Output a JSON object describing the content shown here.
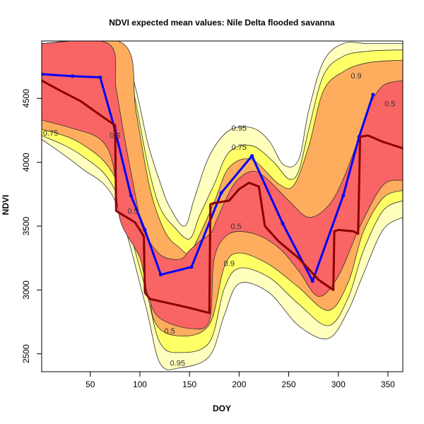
{
  "colors": {
    "band_outer": "#ffffbe",
    "band_mid": "#ffff66",
    "band_inner": "#fdad5d",
    "band_core": "#f96464",
    "median_line": "#8b0000",
    "mean_line": "#0000ff",
    "contour_stroke": "#333333"
  },
  "chart_data": {
    "type": "line",
    "title": "NDVI expected mean values: Nile Delta flooded savanna",
    "xlabel": "DOY",
    "ylabel": "NDVI",
    "xlim": [
      1,
      365
    ],
    "ylim": [
      2360,
      4950
    ],
    "xticks": [
      50,
      100,
      150,
      200,
      250,
      300,
      350
    ],
    "yticks": [
      2500,
      3000,
      3500,
      4000,
      4500
    ],
    "legend": "none",
    "grid": false,
    "series": [
      {
        "role": "mean",
        "color": "#0000ff",
        "x": [
          1,
          32,
          60,
          75,
          91,
          105,
          121,
          152,
          182,
          213,
          244,
          274,
          305,
          321,
          335
        ],
        "y": [
          4690,
          4675,
          4665,
          4250,
          3740,
          3470,
          3120,
          3180,
          3760,
          4050,
          3520,
          3070,
          3740,
          4200,
          4530
        ]
      },
      {
        "role": "median",
        "color": "#8b0000",
        "x": [
          1,
          20,
          40,
          60,
          75,
          76,
          78,
          95,
          104,
          105,
          110,
          130,
          150,
          170,
          171,
          174,
          190,
          200,
          210,
          220,
          223,
          226,
          240,
          260,
          280,
          295,
          296,
          300,
          315,
          320,
          322,
          330,
          345,
          365
        ],
        "y": [
          4640,
          4560,
          4480,
          4370,
          4290,
          3620,
          3610,
          3530,
          3420,
          2980,
          2930,
          2895,
          2860,
          2820,
          3670,
          3680,
          3700,
          3790,
          3840,
          3810,
          3650,
          3500,
          3380,
          3250,
          3080,
          3000,
          3460,
          3470,
          3460,
          3440,
          4200,
          4210,
          4160,
          4110
        ]
      }
    ],
    "contour_bands": [
      {
        "level": 0.95,
        "fill": "#ffffbe",
        "lower": [
          [
            1,
            4180
          ],
          [
            40,
            3960
          ],
          [
            75,
            3700
          ],
          [
            105,
            2900
          ],
          [
            120,
            2430
          ],
          [
            140,
            2390
          ],
          [
            170,
            2480
          ],
          [
            185,
            2800
          ],
          [
            200,
            3050
          ],
          [
            230,
            2980
          ],
          [
            260,
            2720
          ],
          [
            290,
            2620
          ],
          [
            310,
            2840
          ],
          [
            325,
            3120
          ],
          [
            345,
            3470
          ],
          [
            365,
            3570
          ]
        ],
        "upper": [
          [
            365,
            4930
          ],
          [
            330,
            4930
          ],
          [
            305,
            4930
          ],
          [
            285,
            4790
          ],
          [
            270,
            4400
          ],
          [
            260,
            4020
          ],
          [
            245,
            3980
          ],
          [
            230,
            4170
          ],
          [
            213,
            4270
          ],
          [
            190,
            4250
          ],
          [
            170,
            4050
          ],
          [
            155,
            3720
          ],
          [
            145,
            3500
          ],
          [
            130,
            3650
          ],
          [
            120,
            3850
          ],
          [
            108,
            4150
          ],
          [
            95,
            4600
          ],
          [
            80,
            4930
          ],
          [
            1,
            4930
          ]
        ],
        "labels": [
          {
            "x": 138,
            "y": 2430
          },
          {
            "x": 200,
            "y": 4270
          }
        ]
      },
      {
        "level": 0.9,
        "fill": "#ffff66",
        "lower": [
          [
            1,
            4210
          ],
          [
            40,
            4060
          ],
          [
            75,
            3780
          ],
          [
            105,
            3030
          ],
          [
            120,
            2590
          ],
          [
            140,
            2510
          ],
          [
            170,
            2590
          ],
          [
            185,
            3010
          ],
          [
            200,
            3170
          ],
          [
            230,
            3100
          ],
          [
            260,
            2890
          ],
          [
            290,
            2720
          ],
          [
            310,
            2940
          ],
          [
            325,
            3300
          ],
          [
            345,
            3620
          ],
          [
            365,
            3700
          ]
        ],
        "upper": [
          [
            365,
            4880
          ],
          [
            330,
            4870
          ],
          [
            305,
            4830
          ],
          [
            285,
            4680
          ],
          [
            270,
            4250
          ],
          [
            260,
            3930
          ],
          [
            250,
            3870
          ],
          [
            235,
            4000
          ],
          [
            213,
            4130
          ],
          [
            190,
            4080
          ],
          [
            175,
            3830
          ],
          [
            160,
            3580
          ],
          [
            150,
            3400
          ],
          [
            135,
            3490
          ],
          [
            120,
            3650
          ],
          [
            108,
            3980
          ],
          [
            95,
            4500
          ],
          [
            82,
            4930
          ],
          [
            1,
            4930
          ]
        ],
        "labels": [
          {
            "x": 318,
            "y": 4680
          },
          {
            "x": 190,
            "y": 3210
          }
        ]
      },
      {
        "level": 0.75,
        "fill": "#fdad5d",
        "lower": [
          [
            1,
            4260
          ],
          [
            40,
            4150
          ],
          [
            75,
            3880
          ],
          [
            105,
            3180
          ],
          [
            115,
            2750
          ],
          [
            140,
            2640
          ],
          [
            170,
            2730
          ],
          [
            185,
            3180
          ],
          [
            200,
            3290
          ],
          [
            230,
            3200
          ],
          [
            260,
            3020
          ],
          [
            290,
            2840
          ],
          [
            310,
            3060
          ],
          [
            325,
            3450
          ],
          [
            345,
            3720
          ],
          [
            365,
            3780
          ]
        ],
        "upper": [
          [
            365,
            4800
          ],
          [
            330,
            4780
          ],
          [
            305,
            4710
          ],
          [
            285,
            4560
          ],
          [
            270,
            4120
          ],
          [
            255,
            3820
          ],
          [
            240,
            3830
          ],
          [
            213,
            4020
          ],
          [
            190,
            3960
          ],
          [
            175,
            3690
          ],
          [
            160,
            3430
          ],
          [
            150,
            3290
          ],
          [
            140,
            3330
          ],
          [
            125,
            3460
          ],
          [
            110,
            3800
          ],
          [
            96,
            4400
          ],
          [
            83,
            4930
          ],
          [
            1,
            4930
          ]
        ],
        "labels": [
          {
            "x": 10,
            "y": 4230
          },
          {
            "x": 200,
            "y": 4120
          }
        ]
      },
      {
        "level": 0.5,
        "fill": "#f96464",
        "lower": [
          [
            1,
            4330
          ],
          [
            30,
            4270
          ],
          [
            60,
            4180
          ],
          [
            73,
            3980
          ],
          [
            80,
            3550
          ],
          [
            100,
            3250
          ],
          [
            108,
            2960
          ],
          [
            120,
            2780
          ],
          [
            150,
            2700
          ],
          [
            170,
            2760
          ],
          [
            175,
            3250
          ],
          [
            190,
            3440
          ],
          [
            215,
            3440
          ],
          [
            240,
            3330
          ],
          [
            260,
            3150
          ],
          [
            280,
            2950
          ],
          [
            300,
            3110
          ],
          [
            322,
            3500
          ],
          [
            345,
            3820
          ],
          [
            365,
            3860
          ]
        ],
        "upper": [
          [
            365,
            4640
          ],
          [
            345,
            4600
          ],
          [
            330,
            4420
          ],
          [
            322,
            4220
          ],
          [
            305,
            3870
          ],
          [
            290,
            3660
          ],
          [
            270,
            3570
          ],
          [
            250,
            3700
          ],
          [
            228,
            3870
          ],
          [
            213,
            3930
          ],
          [
            195,
            3830
          ],
          [
            178,
            3560
          ],
          [
            172,
            3450
          ],
          [
            160,
            3380
          ],
          [
            150,
            3310
          ],
          [
            140,
            3240
          ],
          [
            120,
            3280
          ],
          [
            103,
            3480
          ],
          [
            96,
            3720
          ],
          [
            85,
            4170
          ],
          [
            76,
            4580
          ],
          [
            68,
            4930
          ],
          [
            1,
            4930
          ]
        ],
        "labels": [
          {
            "x": 75,
            "y": 4210
          },
          {
            "x": 93,
            "y": 3620
          },
          {
            "x": 130,
            "y": 2680
          },
          {
            "x": 197,
            "y": 3500
          },
          {
            "x": 352,
            "y": 4460
          }
        ]
      }
    ]
  }
}
